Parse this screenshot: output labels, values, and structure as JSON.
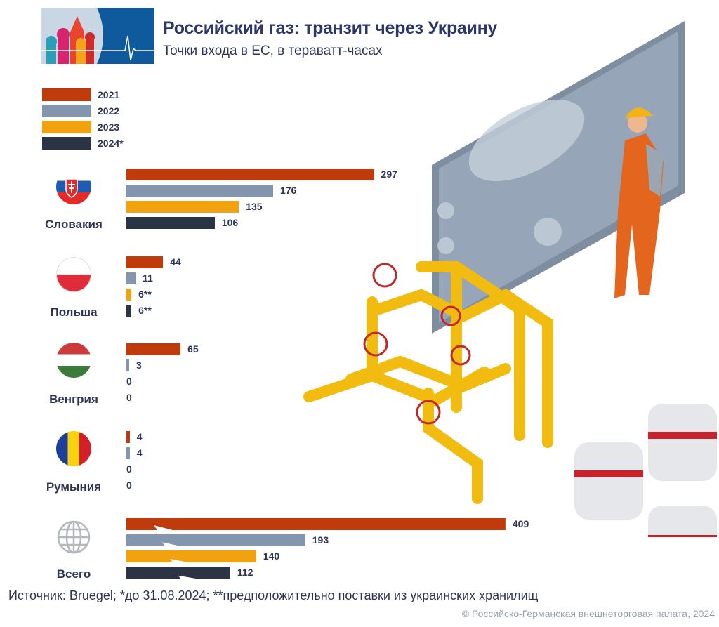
{
  "header": {
    "title": "Российский газ: транзит через Украину",
    "subtitle": "Точки входа в ЕС, в тераватт-часах"
  },
  "chart_data": {
    "type": "bar",
    "orientation": "horizontal",
    "title": "Российский газ: транзит через Украину",
    "subtitle": "Точки входа в ЕС, в тераватт-часах",
    "categories": [
      "Словакия",
      "Польша",
      "Венгрия",
      "Румыния",
      "Всего"
    ],
    "series": [
      {
        "name": "2021",
        "color": "#bf3b0c",
        "values": [
          297,
          44,
          65,
          4,
          409
        ]
      },
      {
        "name": "2022",
        "color": "#8396ad",
        "values": [
          176,
          11,
          3,
          4,
          193
        ]
      },
      {
        "name": "2023",
        "color": "#f3a20f",
        "values": [
          135,
          6,
          0,
          0,
          140
        ]
      },
      {
        "name": "2024*",
        "color": "#2b3444",
        "values": [
          106,
          6,
          0,
          0,
          112
        ]
      }
    ],
    "value_labels": [
      [
        "297",
        "176",
        "135",
        "106"
      ],
      [
        "44",
        "11",
        "6**",
        "6**"
      ],
      [
        "65",
        "3",
        "0",
        "0"
      ],
      [
        "4",
        "4",
        "0",
        "0"
      ],
      [
        "409",
        "193",
        "140",
        "112"
      ]
    ],
    "broken_axis_category": "Всего",
    "legend_position": "top-left",
    "grid": false
  },
  "footer": {
    "source": "Источник: Bruegel; *до 31.08.2024; **предположительно поставки из украинских хранилищ",
    "copyright": "© Российско-Германская внешнеторговая палата, 2024"
  },
  "icons": [
    "slovakia-flag",
    "poland-flag",
    "hungary-flag",
    "romania-flag",
    "globe-icon",
    "logo"
  ]
}
